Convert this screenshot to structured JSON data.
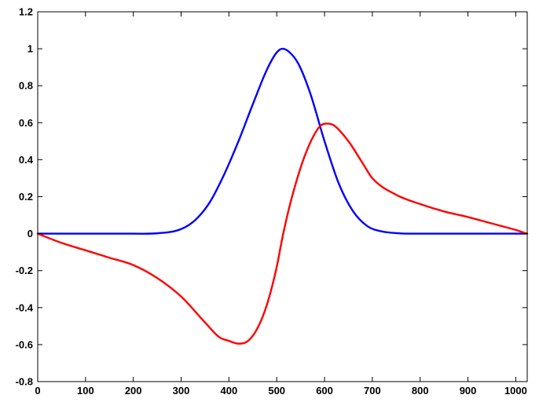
{
  "chart_data": {
    "type": "line",
    "title": "",
    "xlabel": "",
    "ylabel": "",
    "xlim": [
      0,
      1024
    ],
    "ylim": [
      -0.8,
      1.2
    ],
    "grid": false,
    "legend": "none",
    "x_ticks": [
      0,
      100,
      200,
      300,
      400,
      500,
      600,
      700,
      800,
      900,
      1000
    ],
    "y_ticks": [
      -0.8,
      -0.6,
      -0.4,
      -0.2,
      0,
      0.2,
      0.4,
      0.6,
      0.8,
      1,
      1.2
    ],
    "x_tick_labels": [
      "0",
      "100",
      "200",
      "300",
      "400",
      "500",
      "600",
      "700",
      "800",
      "900",
      "1000"
    ],
    "y_tick_labels": [
      "-0.8",
      "-0.6",
      "-0.4",
      "-0.2",
      "0",
      "0.2",
      "0.4",
      "0.6",
      "0.8",
      "1",
      "1.2"
    ],
    "series": [
      {
        "color": "#0000ff",
        "x": [
          0,
          100,
          200,
          250,
          300,
          330,
          360,
          390,
          420,
          450,
          480,
          500,
          512,
          525,
          545,
          570,
          600,
          630,
          660,
          690,
          720,
          750,
          780,
          850,
          1024
        ],
        "y": [
          0,
          0,
          0,
          0.002,
          0.025,
          0.075,
          0.17,
          0.32,
          0.5,
          0.7,
          0.89,
          0.98,
          1.0,
          0.985,
          0.92,
          0.76,
          0.5,
          0.27,
          0.12,
          0.04,
          0.012,
          0.003,
          0,
          0,
          0
        ]
      },
      {
        "color": "#ff0000",
        "x": [
          0,
          50,
          100,
          150,
          200,
          250,
          300,
          350,
          380,
          400,
          420,
          440,
          460,
          480,
          500,
          512,
          530,
          560,
          590,
          605,
          620,
          650,
          680,
          700,
          750,
          800,
          850,
          900,
          950,
          1000,
          1024
        ],
        "y": [
          0,
          -0.05,
          -0.09,
          -0.13,
          -0.17,
          -0.24,
          -0.34,
          -0.48,
          -0.56,
          -0.58,
          -0.595,
          -0.58,
          -0.51,
          -0.38,
          -0.18,
          -0.02,
          0.18,
          0.43,
          0.58,
          0.595,
          0.585,
          0.5,
          0.38,
          0.3,
          0.21,
          0.16,
          0.12,
          0.09,
          0.055,
          0.02,
          0
        ]
      }
    ]
  }
}
